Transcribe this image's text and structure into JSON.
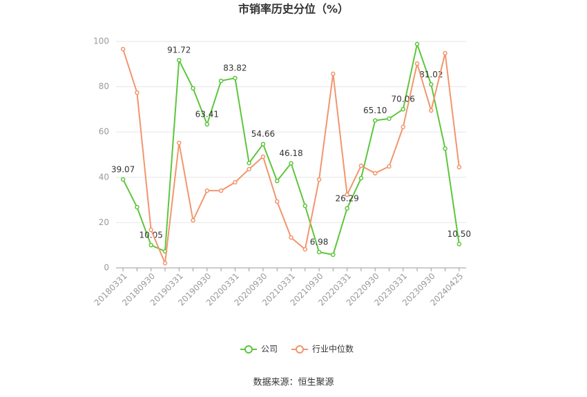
{
  "chart_data": {
    "type": "line",
    "title": "市销率历史分位（%）",
    "categories": [
      "20180331",
      null,
      "20180930",
      null,
      "20190331",
      null,
      "20190930",
      null,
      "20200331",
      null,
      "20200930",
      null,
      "20210331",
      null,
      "20210930",
      null,
      "20220331",
      null,
      "20220930",
      null,
      "20230331",
      null,
      "20230930",
      null,
      "20240425"
    ],
    "series": [
      {
        "name": "公司",
        "color": "#5bc63a",
        "values": [
          39.07,
          26.8,
          10.05,
          7.3,
          91.72,
          79.3,
          63.41,
          82.6,
          83.82,
          46.3,
          54.66,
          38.4,
          46.18,
          27.4,
          6.98,
          5.8,
          26.29,
          39.6,
          65.1,
          65.9,
          70.06,
          98.8,
          81.02,
          52.7,
          10.5
        ],
        "value_labels": [
          "39.07",
          null,
          "10.05",
          null,
          "91.72",
          null,
          "63.41",
          null,
          "83.82",
          null,
          "54.66",
          null,
          "46.18",
          null,
          "6.98",
          null,
          "26.29",
          null,
          "65.10",
          null,
          "70.06",
          null,
          "81.02",
          null,
          "10.50"
        ]
      },
      {
        "name": "行业中位数",
        "color": "#f2956c",
        "values": [
          96.6,
          77.4,
          16.8,
          2.1,
          55.2,
          21.0,
          34.1,
          34.1,
          37.8,
          43.6,
          49.1,
          29.3,
          13.4,
          8.2,
          39.0,
          85.7,
          32.3,
          45.1,
          41.8,
          44.8,
          62.2,
          90.2,
          69.5,
          94.8,
          44.5
        ]
      }
    ],
    "ylim": [
      0,
      100
    ],
    "yticks": [
      0,
      20,
      40,
      60,
      80,
      100
    ],
    "grid": true,
    "source": "数据来源：恒生聚源"
  }
}
